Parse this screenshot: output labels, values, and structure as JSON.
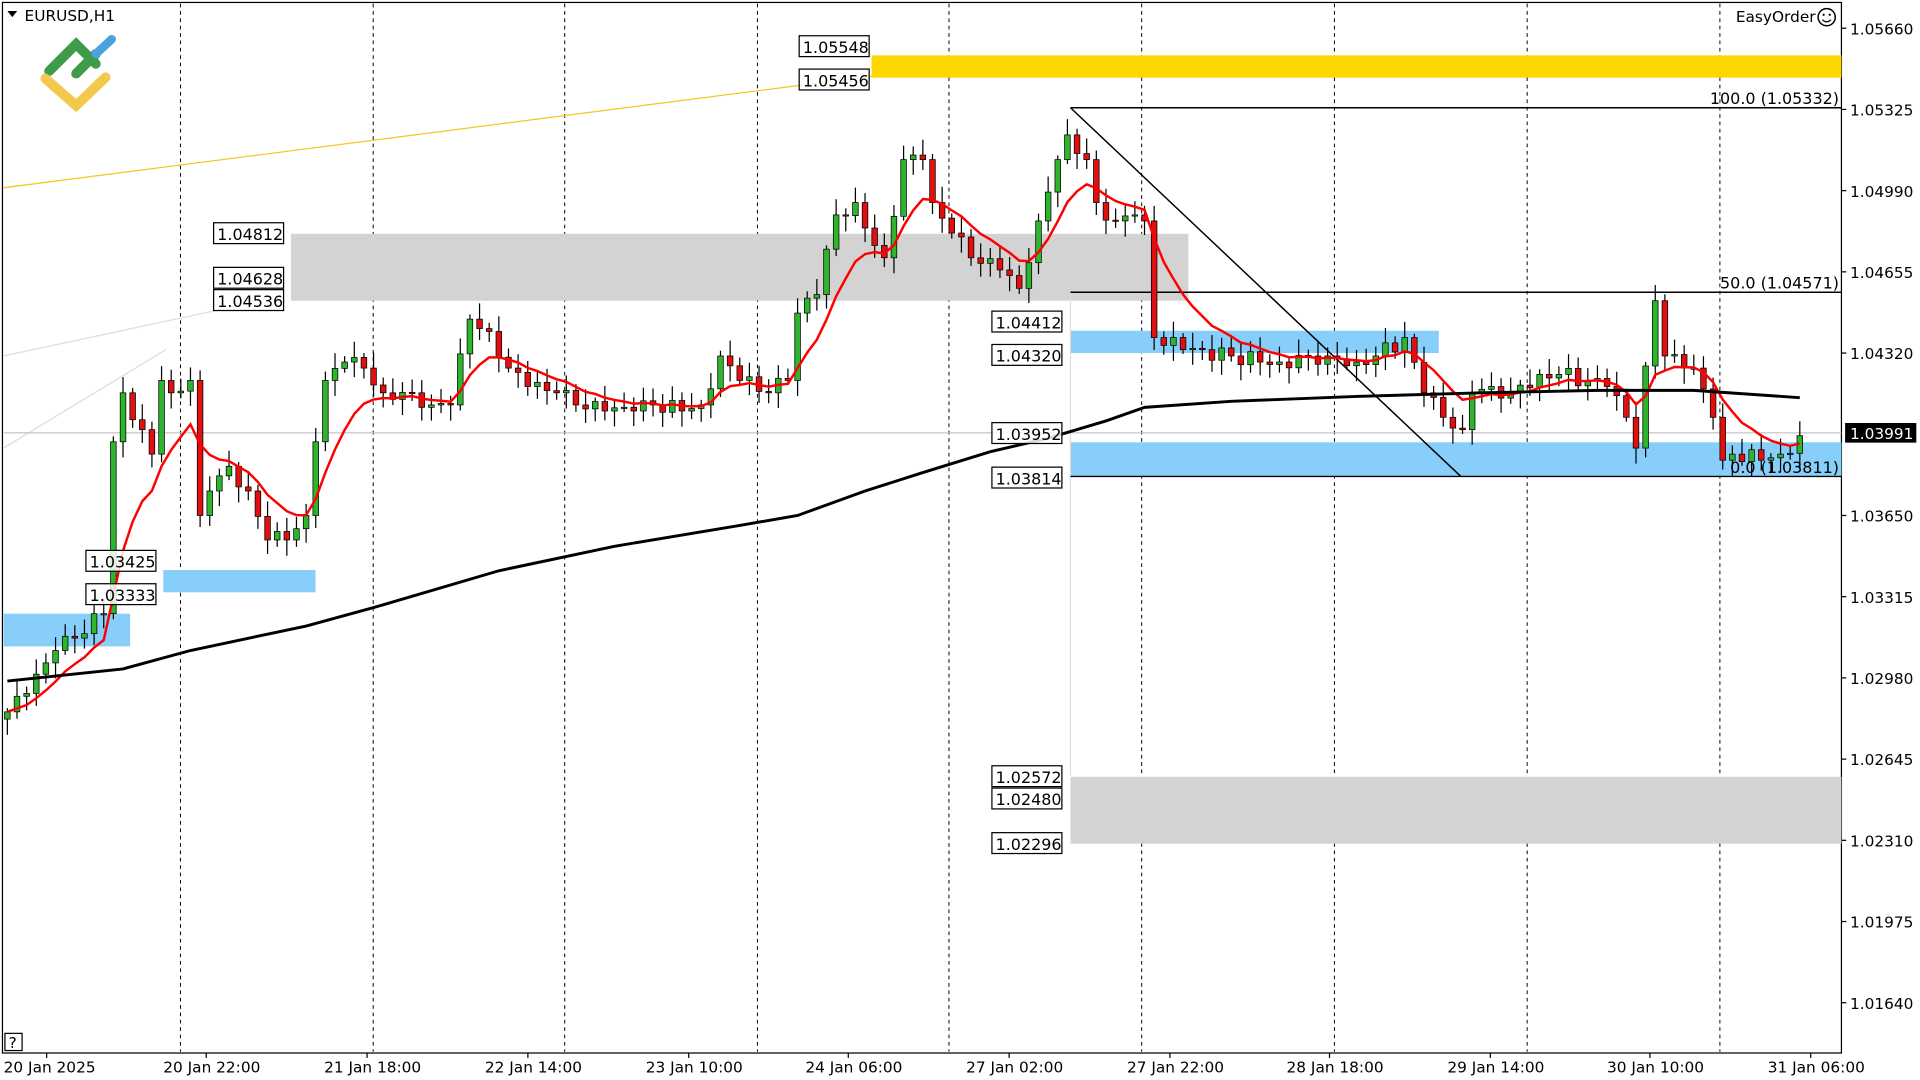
{
  "window": {
    "symbol_title": "EURUSD,H1",
    "easyorder_label": "EasyOrder",
    "help_label": "?"
  },
  "colors": {
    "bull": "#2db52d",
    "bear": "#e01010",
    "fast_ma": "#ff0000",
    "slow_ma": "#000000",
    "supply_zone": "#d3d3d3",
    "demand_zone": "#87cefa",
    "target_zone": "#ffd700",
    "current_price_tag": "#000000"
  },
  "price_axis": {
    "ticks": [
      "1.05660",
      "1.05325",
      "1.04990",
      "1.04655",
      "1.04320",
      "1.03650",
      "1.03315",
      "1.02980",
      "1.02645",
      "1.02310",
      "1.01975",
      "1.01640"
    ],
    "current_price": "1.03991"
  },
  "time_axis": {
    "labels": [
      "20 Jan 2025",
      "20 Jan 22:00",
      "21 Jan 18:00",
      "22 Jan 14:00",
      "23 Jan 10:00",
      "24 Jan 06:00",
      "27 Jan 02:00",
      "27 Jan 22:00",
      "28 Jan 18:00",
      "29 Jan 14:00",
      "30 Jan 10:00",
      "31 Jan 06:00"
    ]
  },
  "zones": [
    {
      "type": "target",
      "top": 1.05548,
      "bottom": 1.05456,
      "labels": [
        "1.05548",
        "1.05456"
      ]
    },
    {
      "type": "supply",
      "top": 1.04812,
      "bottom": 1.04536,
      "labels": [
        "1.04812",
        "1.04628",
        "1.04536"
      ]
    },
    {
      "type": "demand",
      "top": 1.04412,
      "bottom": 1.0432,
      "labels": [
        "1.04412",
        "1.04320"
      ]
    },
    {
      "type": "demand",
      "top": 1.03952,
      "bottom": 1.03814,
      "labels": [
        "1.03952",
        "1.03814"
      ]
    },
    {
      "type": "demand",
      "top": 1.03425,
      "bottom": 1.03333,
      "labels": [
        "1.03425",
        "1.03333"
      ]
    },
    {
      "type": "demand",
      "top": 1.03245,
      "bottom": 1.0311,
      "labels": []
    },
    {
      "type": "supply",
      "top": 1.02572,
      "bottom": 1.02296,
      "labels": [
        "1.02572",
        "1.02480",
        "1.02296"
      ]
    }
  ],
  "fibonacci": [
    {
      "level": "100.0",
      "price": 1.05332,
      "label": "100.0 (1.05332)"
    },
    {
      "level": "50.0",
      "price": 1.04571,
      "label": "50.0 (1.04571)"
    },
    {
      "level": "0.0",
      "price": 1.03811,
      "label": "0.0 (1.03811)"
    }
  ],
  "chart_data": {
    "type": "candlestick",
    "symbol": "EURUSD",
    "timeframe": "H1",
    "ylim": [
      1.015,
      1.0575
    ],
    "grid": "vertical dashed at time labels",
    "close_path": [
      [
        0,
        1.0284
      ],
      [
        2,
        1.02916
      ],
      [
        5,
        1.03093
      ],
      [
        7,
        1.03144
      ],
      [
        10,
        1.03245
      ],
      [
        11,
        1.03954
      ],
      [
        12,
        1.04156
      ],
      [
        14,
        1.04004
      ],
      [
        15,
        1.03903
      ],
      [
        16,
        1.04207
      ],
      [
        17,
        1.04156
      ],
      [
        19,
        1.04207
      ],
      [
        20,
        1.0365
      ],
      [
        21,
        1.03751
      ],
      [
        23,
        1.03853
      ],
      [
        25,
        1.03751
      ],
      [
        27,
        1.03549
      ],
      [
        29,
        1.03549
      ],
      [
        31,
        1.0365
      ],
      [
        32,
        1.03954
      ],
      [
        33,
        1.04207
      ],
      [
        35,
        1.04283
      ],
      [
        37,
        1.04258
      ],
      [
        39,
        1.04156
      ],
      [
        42,
        1.04156
      ],
      [
        44,
        1.04106
      ],
      [
        46,
        1.04106
      ],
      [
        48,
        1.0446
      ],
      [
        50,
        1.04409
      ],
      [
        52,
        1.04258
      ],
      [
        54,
        1.04182
      ],
      [
        57,
        1.04156
      ],
      [
        59,
        1.04106
      ],
      [
        62,
        1.04081
      ],
      [
        65,
        1.04081
      ],
      [
        67,
        1.04106
      ],
      [
        70,
        1.04081
      ],
      [
        72,
        1.04106
      ],
      [
        74,
        1.04308
      ],
      [
        76,
        1.04207
      ],
      [
        79,
        1.04156
      ],
      [
        81,
        1.04207
      ],
      [
        82,
        1.04485
      ],
      [
        84,
        1.04561
      ],
      [
        86,
        1.0489
      ],
      [
        88,
        1.04941
      ],
      [
        90,
        1.04764
      ],
      [
        91,
        1.04713
      ],
      [
        93,
        1.05118
      ],
      [
        95,
        1.05118
      ],
      [
        96,
        1.04941
      ],
      [
        98,
        1.04815
      ],
      [
        100,
        1.04713
      ],
      [
        103,
        1.04663
      ],
      [
        105,
        1.04587
      ],
      [
        107,
        1.04865
      ],
      [
        109,
        1.05118
      ],
      [
        110,
        1.0522
      ],
      [
        112,
        1.05118
      ],
      [
        113,
        1.04941
      ],
      [
        115,
        1.04865
      ],
      [
        117,
        1.0489
      ],
      [
        118,
        1.04865
      ],
      [
        119,
        1.04384
      ],
      [
        122,
        1.04334
      ],
      [
        124,
        1.04334
      ],
      [
        127,
        1.04308
      ],
      [
        130,
        1.04283
      ],
      [
        132,
        1.04283
      ],
      [
        135,
        1.04308
      ],
      [
        137,
        1.04308
      ],
      [
        140,
        1.04283
      ],
      [
        142,
        1.04308
      ],
      [
        145,
        1.04384
      ],
      [
        147,
        1.04156
      ],
      [
        149,
        1.04055
      ],
      [
        151,
        1.04004
      ],
      [
        152,
        1.04156
      ],
      [
        154,
        1.04182
      ],
      [
        156,
        1.04156
      ],
      [
        159,
        1.04232
      ],
      [
        161,
        1.04232
      ],
      [
        164,
        1.04207
      ],
      [
        166,
        1.04182
      ],
      [
        168,
        1.04055
      ],
      [
        169,
        1.03928
      ],
      [
        171,
        1.04536
      ],
      [
        172,
        1.04308
      ],
      [
        174,
        1.04258
      ],
      [
        175,
        1.04258
      ],
      [
        177,
        1.04055
      ],
      [
        178,
        1.03878
      ],
      [
        179,
        1.03903
      ],
      [
        182,
        1.03878
      ],
      [
        184,
        1.03903
      ],
      [
        186,
        1.03979
      ]
    ],
    "slow_ma_path": [
      [
        0,
        1.02967
      ],
      [
        12,
        1.03017
      ],
      [
        19,
        1.03093
      ],
      [
        31,
        1.03194
      ],
      [
        38,
        1.0327
      ],
      [
        51,
        1.03422
      ],
      [
        63,
        1.03523
      ],
      [
        76,
        1.03609
      ],
      [
        82,
        1.0365
      ],
      [
        89,
        1.03751
      ],
      [
        95,
        1.03827
      ],
      [
        102,
        1.03913
      ],
      [
        108,
        1.03969
      ],
      [
        114,
        1.0404
      ],
      [
        118,
        1.04096
      ],
      [
        127,
        1.04121
      ],
      [
        140,
        1.04141
      ],
      [
        153,
        1.04156
      ],
      [
        165,
        1.04166
      ],
      [
        175,
        1.04166
      ],
      [
        186,
        1.04136
      ]
    ],
    "fast_ma": "EMA of close",
    "last_price": 1.03991
  }
}
